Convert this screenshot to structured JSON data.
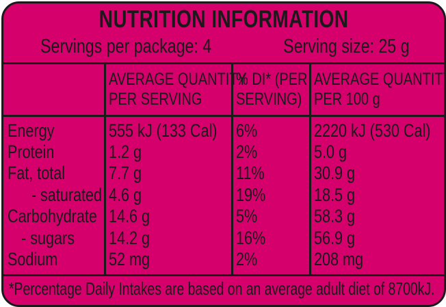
{
  "title": "NUTRITION INFORMATION",
  "servings_per_package": "Servings per package: 4",
  "serving_size": "Serving size: 25 g",
  "headers": {
    "avg_serving": [
      "AVERAGE QUANTITY",
      "PER SERVING"
    ],
    "di": [
      "% DI* (PER",
      "SERVING)"
    ],
    "avg_100g": [
      "AVERAGE QUANTITY",
      "PER 100 g"
    ]
  },
  "rows": [
    {
      "label": "Energy",
      "per_serving": "555 kJ (133 Cal)",
      "di": "6%",
      "per_100g": "2220 kJ (530 Cal)"
    },
    {
      "label": "Protein",
      "per_serving": "1.2 g",
      "di": "2%",
      "per_100g": "5.0 g"
    },
    {
      "label": "Fat, total",
      "per_serving": "7.7 g",
      "di": "11%",
      "per_100g": "30.9 g"
    },
    {
      "label": "- saturated",
      "per_serving": "4.6 g",
      "di": "19%",
      "per_100g": "18.5 g"
    },
    {
      "label": "Carbohydrate",
      "per_serving": "14.6 g",
      "di": "5%",
      "per_100g": "58.3 g"
    },
    {
      "label": "- sugars",
      "per_serving": "14.2 g",
      "di": "16%",
      "per_100g": "56.9 g"
    },
    {
      "label": "Sodium",
      "per_serving": "52 mg",
      "di": "2%",
      "per_100g": "208 mg"
    }
  ],
  "footnote": "*Percentage Daily Intakes are based on an average adult diet of 8700kJ.",
  "colors": {
    "background": "#d6006d",
    "ink": "#1a1a1a"
  }
}
